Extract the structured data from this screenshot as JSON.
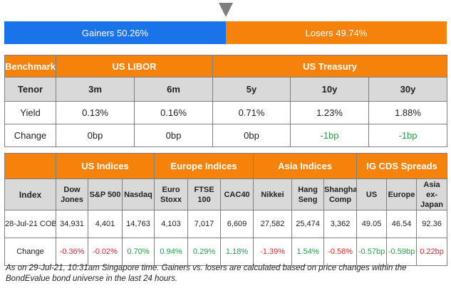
{
  "bar": {
    "gainers": "Gainers 50.26%",
    "losers": "Losers 49.74%"
  },
  "rates": {
    "benchmark_label": "Benchmark",
    "libor_label": "US LIBOR",
    "treasury_label": "US Treasury",
    "tenor_label": "Tenor",
    "tenors": [
      "3m",
      "6m",
      "5y",
      "10y",
      "30y"
    ],
    "yield_label": "Yield",
    "yields": [
      "0.13%",
      "0.16%",
      "0.71%",
      "1.23%",
      "1.88%"
    ],
    "change_label": "Change",
    "changes": [
      "0bp",
      "0bp",
      "0bp",
      "-1bp",
      "-1bp"
    ]
  },
  "indices": {
    "groups": [
      "US Indices",
      "Europe Indices",
      "Asia Indices",
      "IG CDS Spreads"
    ],
    "index_label": "Index",
    "names": [
      "Dow Jones",
      "S&P 500",
      "Nasdaq",
      "Euro Stoxx",
      "FTSE 100",
      "CAC40",
      "Nikkei",
      "Hang Seng",
      "Shanghai Comp",
      "US",
      "Europe",
      "Asia ex-Japan"
    ],
    "date_label": "28-Jul-21 COB",
    "values": [
      "34,931",
      "4,401",
      "14,763",
      "4,103",
      "7,017",
      "6,609",
      "27,582",
      "25,474",
      "3,362",
      "49.05",
      "46.54",
      "92.36"
    ],
    "change_label": "Change",
    "changes": [
      "-0.36%",
      "-0.02%",
      "0.70%",
      "0.94%",
      "0.29%",
      "1.18%",
      "-1.39%",
      "1.54%",
      "-0.58%",
      "-0.57bp",
      "-0.59bp",
      "0.22bp"
    ]
  },
  "footnote": "As on 29-Jul-21, 10:31am Singapore time. Gainers vs. losers are calculated based on price changes within the BondEvalue bond universe in the last 24 hours.",
  "colors": {
    "orange": "#f5820b",
    "blue": "#1a73e8",
    "green": "#22a046",
    "red": "#e0252b",
    "grey": "#d9d9d9"
  }
}
